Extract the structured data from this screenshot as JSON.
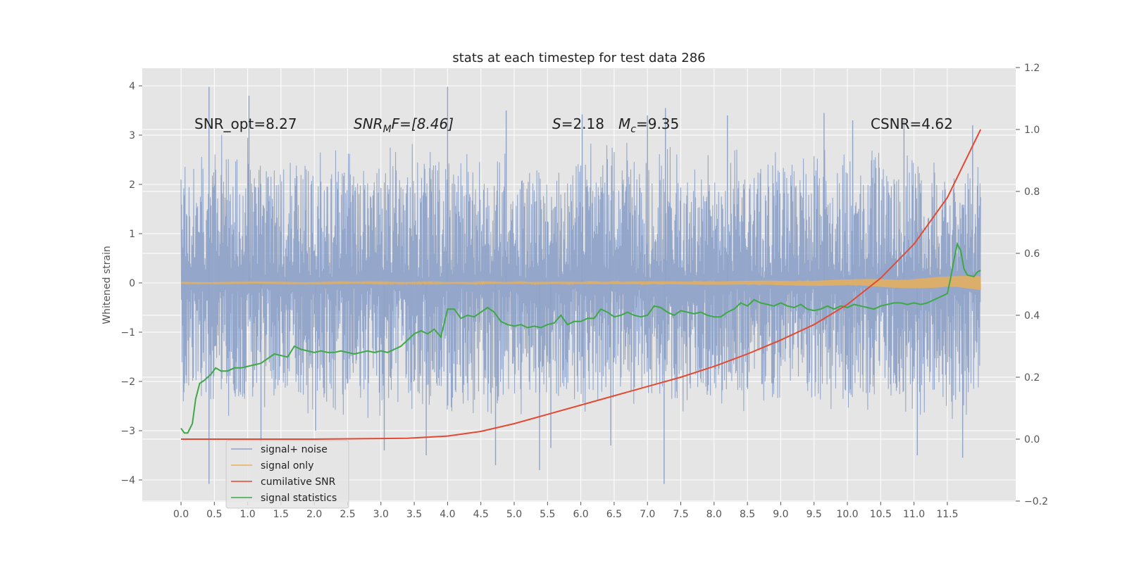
{
  "chart_data": {
    "type": "line",
    "title": "stats at each timestep for test data 286",
    "ylabel": "Whitened strain",
    "xlabel": "",
    "xlim": [
      -0.5,
      12.65
    ],
    "ylim": [
      -4.45,
      4.35
    ],
    "y2lim": [
      -0.2,
      1.2
    ],
    "x_ticks": [
      "0.0",
      "0.5",
      "1.0",
      "1.5",
      "2.0",
      "2.5",
      "3.0",
      "3.5",
      "4.0",
      "4.5",
      "5.0",
      "5.5",
      "6.0",
      "6.5",
      "7.0",
      "7.5",
      "8.0",
      "8.5",
      "9.0",
      "9.5",
      "10.0",
      "10.5",
      "11.0",
      "11.5"
    ],
    "y_ticks": [
      "4",
      "3",
      "2",
      "1",
      "0",
      "−1",
      "−2",
      "−3",
      "−4"
    ],
    "y2_ticks": [
      "1.2",
      "1.0",
      "0.8",
      "0.6",
      "0.4",
      "0.2",
      "0.0",
      "−0.2"
    ],
    "grid": true,
    "legend_position": "lower-left",
    "colors": {
      "plot_bg": "#e5e5e5",
      "noise": "#8fa3c8",
      "signal": "#e8b05a",
      "csnr": "#e24a33",
      "stats": "#3fa846",
      "grid": "#ffffff"
    },
    "annotations": {
      "snr_opt": "SNR_opt=8.27",
      "snr_mf_a": "SNR",
      "snr_mf_sub": "M",
      "snr_mf_b": "F=[8.46]",
      "s_a": "S",
      "s_b": "=2.18",
      "mc_a": "M",
      "mc_sub": "c",
      "mc_b": "=9.35",
      "csnr": "CSNR=4.62"
    },
    "series": [
      {
        "name": "signal+ noise",
        "legend_label": "signal+ noise",
        "axis": "left",
        "description_values": "whitened noisy strain, spans roughly -4.1 to 4.0",
        "envelope_upper": [
          [
            0.0,
            2.3
          ],
          [
            0.5,
            2.8
          ],
          [
            1.0,
            2.7
          ],
          [
            1.5,
            2.5
          ],
          [
            2.0,
            2.6
          ],
          [
            2.5,
            2.4
          ],
          [
            3.0,
            2.5
          ],
          [
            3.5,
            2.6
          ],
          [
            4.0,
            2.7
          ],
          [
            4.5,
            2.5
          ],
          [
            5.0,
            2.4
          ],
          [
            5.5,
            2.5
          ],
          [
            6.0,
            2.6
          ],
          [
            6.5,
            2.7
          ],
          [
            7.0,
            2.6
          ],
          [
            7.5,
            2.5
          ],
          [
            8.0,
            2.4
          ],
          [
            8.5,
            2.5
          ],
          [
            9.0,
            2.6
          ],
          [
            9.5,
            2.5
          ],
          [
            10.0,
            2.4
          ],
          [
            10.5,
            2.6
          ],
          [
            11.0,
            2.5
          ],
          [
            11.5,
            2.4
          ],
          [
            12.0,
            2.3
          ]
        ],
        "envelope_lower": [
          [
            0.0,
            -2.2
          ],
          [
            0.5,
            -2.6
          ],
          [
            1.0,
            -2.6
          ],
          [
            1.5,
            -2.4
          ],
          [
            2.0,
            -2.5
          ],
          [
            2.5,
            -2.5
          ],
          [
            3.0,
            -2.6
          ],
          [
            3.5,
            -2.4
          ],
          [
            4.0,
            -2.5
          ],
          [
            4.5,
            -2.6
          ],
          [
            5.0,
            -2.5
          ],
          [
            5.5,
            -2.4
          ],
          [
            6.0,
            -2.6
          ],
          [
            6.5,
            -2.5
          ],
          [
            7.0,
            -2.4
          ],
          [
            7.5,
            -2.6
          ],
          [
            8.0,
            -2.5
          ],
          [
            8.5,
            -2.4
          ],
          [
            9.0,
            -2.5
          ],
          [
            9.5,
            -2.6
          ],
          [
            10.0,
            -2.5
          ],
          [
            10.5,
            -2.4
          ],
          [
            11.0,
            -2.5
          ],
          [
            11.5,
            -2.6
          ],
          [
            12.0,
            -2.4
          ]
        ],
        "spikes": [
          [
            0.42,
            3.98
          ],
          [
            0.42,
            -4.08
          ],
          [
            1.02,
            3.8
          ],
          [
            1.2,
            -3.3
          ],
          [
            2.02,
            -3.0
          ],
          [
            3.05,
            -3.4
          ],
          [
            3.68,
            -3.5
          ],
          [
            4.0,
            3.98
          ],
          [
            4.72,
            -3.7
          ],
          [
            4.88,
            3.5
          ],
          [
            5.38,
            -3.8
          ],
          [
            5.55,
            -3.35
          ],
          [
            6.02,
            3.42
          ],
          [
            6.45,
            -3.3
          ],
          [
            7.0,
            3.4
          ],
          [
            7.27,
            3.55
          ],
          [
            7.25,
            -4.08
          ],
          [
            8.2,
            3.4
          ],
          [
            9.65,
            3.45
          ],
          [
            10.08,
            3.3
          ],
          [
            10.85,
            3.3
          ],
          [
            11.05,
            -3.5
          ],
          [
            11.73,
            -3.55
          ],
          [
            11.88,
            3.2
          ]
        ]
      },
      {
        "name": "signal only",
        "legend_label": "signal only",
        "axis": "left",
        "amplitude": [
          [
            0.0,
            0.01
          ],
          [
            2.0,
            0.012
          ],
          [
            4.0,
            0.016
          ],
          [
            6.0,
            0.022
          ],
          [
            8.0,
            0.035
          ],
          [
            9.0,
            0.05
          ],
          [
            10.0,
            0.07
          ],
          [
            10.5,
            0.09
          ],
          [
            11.0,
            0.11
          ],
          [
            11.5,
            0.13
          ],
          [
            12.0,
            0.16
          ]
        ]
      },
      {
        "name": "cumilative SNR",
        "legend_label": "cumilative SNR",
        "axis": "right",
        "x": [
          0.0,
          1.0,
          2.0,
          3.0,
          3.4,
          4.0,
          4.5,
          5.0,
          5.5,
          6.0,
          6.5,
          7.0,
          7.5,
          8.0,
          8.5,
          9.0,
          9.5,
          10.0,
          10.5,
          11.0,
          11.5,
          12.0
        ],
        "values": [
          0.0,
          0.0,
          0.0,
          0.002,
          0.003,
          0.01,
          0.025,
          0.05,
          0.08,
          0.11,
          0.14,
          0.17,
          0.2,
          0.235,
          0.275,
          0.32,
          0.37,
          0.435,
          0.52,
          0.63,
          0.78,
          1.0
        ]
      },
      {
        "name": "signal statistics",
        "legend_label": "signal statistics",
        "axis": "right",
        "x": [
          0.0,
          0.05,
          0.1,
          0.17,
          0.22,
          0.28,
          0.35,
          0.45,
          0.52,
          0.6,
          0.7,
          0.8,
          0.9,
          1.0,
          1.1,
          1.2,
          1.3,
          1.4,
          1.5,
          1.6,
          1.7,
          1.8,
          1.9,
          2.0,
          2.1,
          2.2,
          2.3,
          2.4,
          2.5,
          2.6,
          2.7,
          2.8,
          2.9,
          3.0,
          3.1,
          3.2,
          3.3,
          3.4,
          3.5,
          3.6,
          3.7,
          3.8,
          3.9,
          4.0,
          4.1,
          4.2,
          4.3,
          4.4,
          4.5,
          4.6,
          4.7,
          4.8,
          4.9,
          5.0,
          5.1,
          5.2,
          5.3,
          5.4,
          5.5,
          5.6,
          5.7,
          5.8,
          5.9,
          6.0,
          6.1,
          6.2,
          6.3,
          6.4,
          6.5,
          6.6,
          6.7,
          6.8,
          6.9,
          7.0,
          7.1,
          7.2,
          7.3,
          7.4,
          7.5,
          7.6,
          7.7,
          7.8,
          7.9,
          8.0,
          8.1,
          8.2,
          8.3,
          8.4,
          8.5,
          8.6,
          8.7,
          8.8,
          8.9,
          9.0,
          9.1,
          9.2,
          9.3,
          9.4,
          9.5,
          9.6,
          9.7,
          9.8,
          9.9,
          10.0,
          10.1,
          10.2,
          10.3,
          10.4,
          10.5,
          10.6,
          10.7,
          10.8,
          10.9,
          11.0,
          11.1,
          11.2,
          11.3,
          11.4,
          11.5,
          11.55,
          11.6,
          11.65,
          11.7,
          11.75,
          11.8,
          11.9,
          11.95,
          12.0
        ],
        "values": [
          0.035,
          0.02,
          0.02,
          0.05,
          0.13,
          0.18,
          0.19,
          0.21,
          0.23,
          0.22,
          0.22,
          0.23,
          0.23,
          0.235,
          0.24,
          0.245,
          0.26,
          0.275,
          0.27,
          0.265,
          0.3,
          0.29,
          0.285,
          0.28,
          0.285,
          0.28,
          0.28,
          0.285,
          0.28,
          0.275,
          0.28,
          0.285,
          0.28,
          0.285,
          0.28,
          0.29,
          0.3,
          0.32,
          0.34,
          0.35,
          0.34,
          0.355,
          0.33,
          0.42,
          0.42,
          0.39,
          0.4,
          0.395,
          0.41,
          0.425,
          0.41,
          0.38,
          0.37,
          0.365,
          0.37,
          0.36,
          0.365,
          0.36,
          0.37,
          0.375,
          0.4,
          0.37,
          0.38,
          0.38,
          0.39,
          0.39,
          0.42,
          0.41,
          0.395,
          0.4,
          0.41,
          0.4,
          0.395,
          0.4,
          0.43,
          0.425,
          0.41,
          0.4,
          0.415,
          0.41,
          0.405,
          0.41,
          0.4,
          0.395,
          0.395,
          0.41,
          0.42,
          0.44,
          0.43,
          0.45,
          0.44,
          0.435,
          0.43,
          0.44,
          0.43,
          0.425,
          0.435,
          0.42,
          0.415,
          0.42,
          0.43,
          0.42,
          0.43,
          0.425,
          0.435,
          0.43,
          0.425,
          0.42,
          0.43,
          0.435,
          0.44,
          0.44,
          0.435,
          0.44,
          0.435,
          0.44,
          0.45,
          0.46,
          0.47,
          0.52,
          0.58,
          0.63,
          0.61,
          0.55,
          0.53,
          0.525,
          0.54,
          0.545
        ]
      }
    ]
  }
}
